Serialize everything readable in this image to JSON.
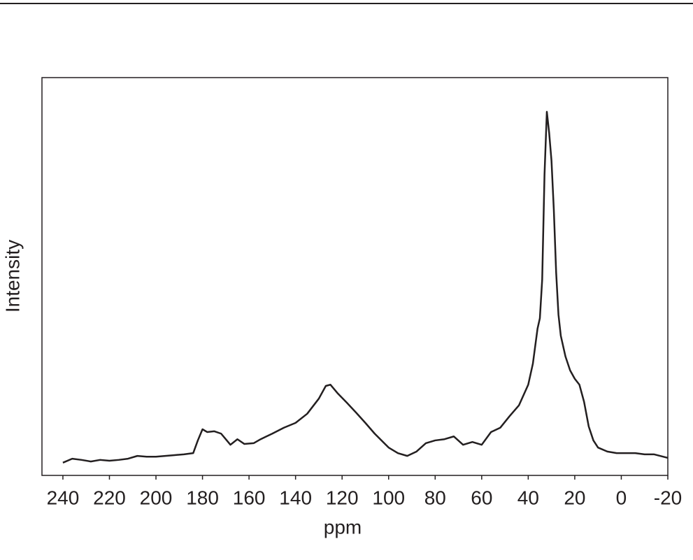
{
  "chart_data": {
    "type": "line",
    "xlabel": "ppm",
    "ylabel": "Intensity",
    "x": [
      240,
      236,
      232,
      228,
      224,
      220,
      216,
      212,
      208,
      204,
      200,
      196,
      192,
      188,
      184,
      182,
      180,
      178,
      175,
      172,
      170,
      168,
      165,
      162,
      158,
      155,
      150,
      145,
      140,
      135,
      130,
      127,
      125,
      122,
      118,
      114,
      110,
      106,
      100,
      96,
      92,
      88,
      84,
      80,
      76,
      72,
      68,
      64,
      60,
      56,
      52,
      48,
      44,
      40,
      38,
      36,
      35,
      34,
      33,
      32,
      31,
      30,
      29,
      28,
      27,
      26,
      24,
      22,
      20,
      18,
      16,
      14,
      12,
      10,
      6,
      2,
      -2,
      -6,
      -10,
      -14,
      -20
    ],
    "values": [
      3.2,
      4.2,
      3.9,
      3.5,
      3.9,
      3.7,
      3.9,
      4.2,
      4.9,
      4.7,
      4.7,
      4.9,
      5.1,
      5.3,
      5.6,
      8.8,
      11.6,
      10.9,
      11.1,
      10.5,
      9.1,
      7.7,
      9.1,
      7.9,
      8.1,
      9.1,
      10.5,
      12.0,
      13.2,
      15.5,
      19.3,
      22.5,
      22.8,
      20.7,
      18.3,
      15.8,
      13.2,
      10.5,
      7.0,
      5.6,
      4.9,
      6.0,
      8.1,
      8.8,
      9.1,
      9.8,
      7.7,
      8.4,
      7.7,
      10.9,
      12.0,
      14.9,
      17.6,
      22.8,
      28.1,
      36.9,
      39.5,
      49.2,
      75.6,
      91.4,
      86.1,
      79.1,
      66.8,
      51.0,
      40.4,
      35.1,
      29.9,
      26.4,
      24.3,
      22.8,
      18.5,
      12.3,
      8.8,
      7.0,
      6.0,
      5.6,
      5.6,
      5.6,
      5.3,
      5.3,
      4.4
    ],
    "color": "#231f20",
    "xlim": [
      249,
      -20
    ],
    "xticks": [
      240,
      220,
      200,
      180,
      160,
      140,
      120,
      100,
      80,
      60,
      40,
      20,
      0,
      -20
    ],
    "ylim": [
      0,
      100
    ]
  }
}
